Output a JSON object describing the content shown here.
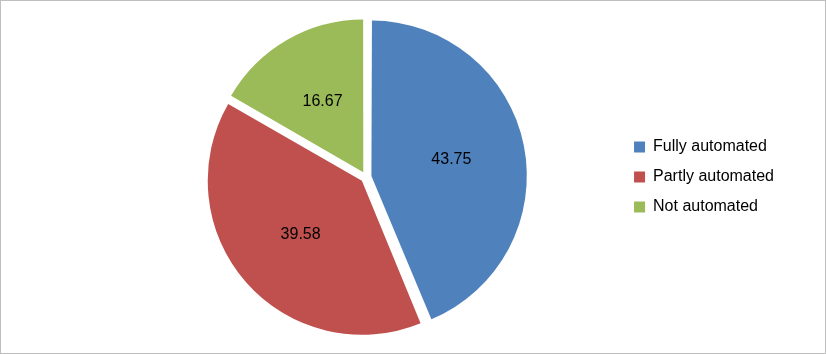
{
  "chart_data": {
    "type": "pie",
    "categories": [
      "Fully automated",
      "Partly automated",
      "Not automated"
    ],
    "values": [
      43.75,
      39.58,
      16.67
    ],
    "colors": [
      "#4f81bd",
      "#c0504d",
      "#9bbb59"
    ],
    "legend": "right",
    "data_labels": true
  }
}
